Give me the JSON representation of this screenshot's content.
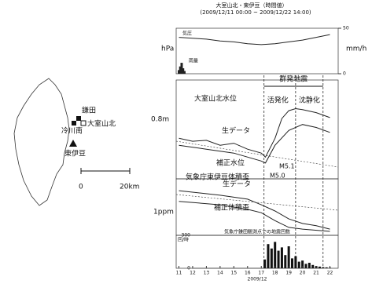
{
  "map": {
    "labels": [
      "鎌田",
      "冷川南",
      "大室山北",
      "東伊豆"
    ],
    "scale": [
      "0",
      "20km"
    ]
  },
  "chart_data": [
    {
      "type": "line",
      "title": "大室山北・東伊豆（時間値）",
      "subtitle": "(2009/12/11 00:00 ~ 2009/12/22 14:00)",
      "ylabel": "hPa",
      "y2label": "mm/h",
      "annotations": [
        "気圧",
        "雨量"
      ],
      "ylim": [
        0,
        100
      ],
      "y2lim": [
        0,
        50
      ],
      "y2ticks": [
        0,
        50
      ],
      "series": [
        {
          "name": "気圧",
          "color": "#222",
          "x": [
            11,
            12,
            13,
            14,
            15,
            16,
            17,
            18,
            19,
            20,
            21,
            22
          ],
          "values": [
            80,
            78,
            76,
            72,
            70,
            66,
            64,
            66,
            70,
            74,
            80,
            86
          ]
        },
        {
          "name": "雨量",
          "type": "bar",
          "axis": "y2",
          "color": "#222",
          "x": [
            11,
            11.1,
            11.2,
            11.3,
            11.4
          ],
          "values": [
            4,
            8,
            12,
            6,
            3
          ]
        }
      ]
    },
    {
      "type": "line",
      "title": "大室山北水位",
      "scale_label": "0.8m",
      "annotations": [
        "群発地震",
        "活発化",
        "沈静化",
        "M5.1",
        "M5.0"
      ],
      "ylim": [
        0,
        100
      ],
      "series": [
        {
          "name": "生データ",
          "color": "#222",
          "x": [
            11,
            12,
            13,
            14,
            15,
            16,
            17,
            17.3,
            18,
            18.5,
            19,
            19.5,
            20,
            21,
            22
          ],
          "values": [
            41,
            38,
            39,
            34,
            36,
            30,
            26,
            22,
            41,
            61,
            69,
            71,
            70,
            67,
            62
          ]
        },
        {
          "name": "補正水位",
          "color": "#222",
          "x": [
            11,
            13,
            15,
            17,
            17.3,
            18,
            19,
            20,
            21,
            22
          ],
          "values": [
            34,
            30,
            26,
            18,
            16,
            34,
            49,
            55,
            52,
            47
          ]
        }
      ]
    },
    {
      "type": "line",
      "title": "気象庁東伊豆体積歪",
      "scale_label": "1ppm",
      "ylim": [
        0,
        100
      ],
      "series": [
        {
          "name": "生データ",
          "color": "#222",
          "x": [
            11,
            14,
            16,
            17,
            18,
            19,
            20,
            21,
            22
          ],
          "values": [
            79,
            71,
            64,
            54,
            43,
            29,
            21,
            17,
            11
          ]
        },
        {
          "name": "補正体積歪",
          "color": "#222",
          "x": [
            11,
            14,
            16,
            17,
            18,
            19,
            20,
            22
          ],
          "values": [
            60,
            54,
            46,
            40,
            26,
            14,
            11,
            7
          ]
        }
      ]
    },
    {
      "type": "bar",
      "title": "気象庁鎌田観測点での地震回数",
      "ylabel": "回/時",
      "xlabel": "2009/12",
      "ylim": [
        0,
        300
      ],
      "yticks": [
        0,
        300
      ],
      "xlim": [
        10.8,
        22.6
      ],
      "xticks": [
        11,
        12,
        13,
        14,
        15,
        16,
        17,
        18,
        19,
        20,
        21,
        22
      ],
      "series": [
        {
          "name": "地震回数",
          "color": "#111",
          "x": [
            17.25,
            17.5,
            17.75,
            18,
            18.25,
            18.5,
            18.75,
            19,
            19.25,
            19.5,
            19.75,
            20,
            20.25,
            20.5,
            20.75,
            21,
            21.25,
            21.5,
            21.75,
            22
          ],
          "values": [
            80,
            220,
            180,
            240,
            160,
            190,
            120,
            200,
            90,
            110,
            60,
            70,
            40,
            50,
            30,
            20,
            15,
            10,
            8,
            5
          ]
        }
      ]
    }
  ]
}
